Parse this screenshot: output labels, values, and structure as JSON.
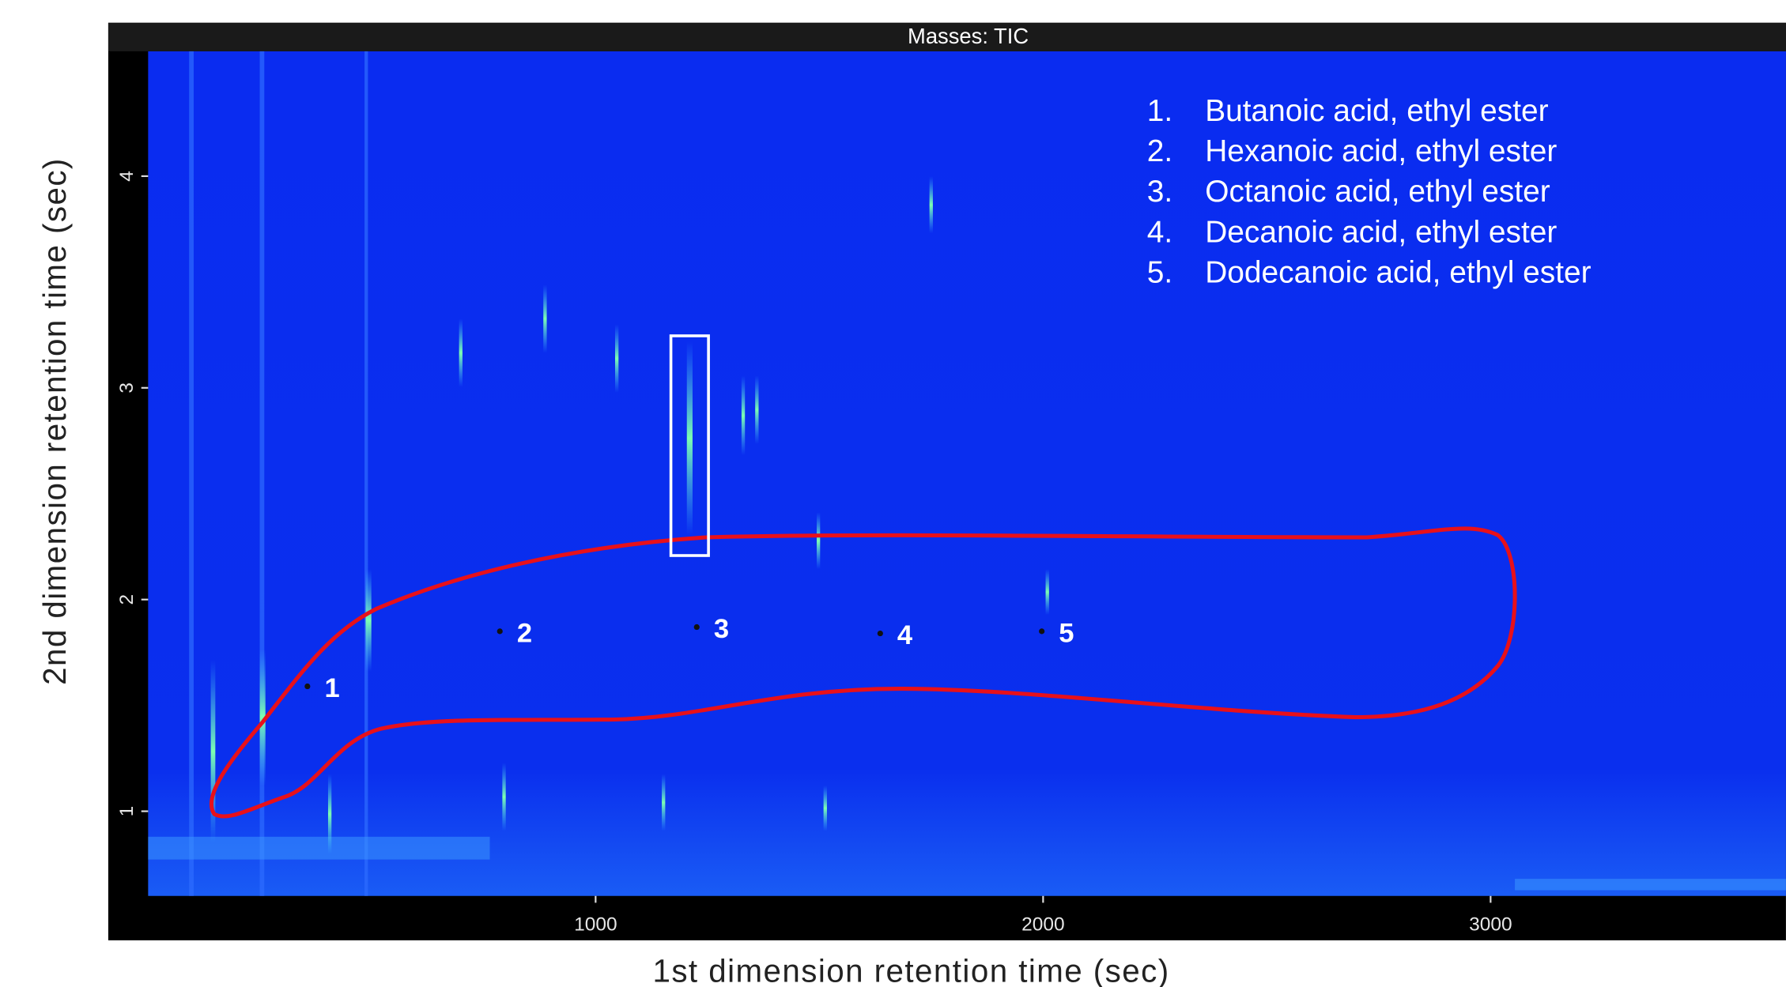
{
  "chart_data": {
    "type": "chromatogram",
    "title": "Masses: TIC",
    "x_label": "1st dimension retention time (sec)",
    "y_label": "2nd dimension retention time (sec)",
    "xlim": [
      0,
      3660
    ],
    "ylim": [
      0.6,
      4.59
    ],
    "xticks": [
      1000,
      2000,
      3000
    ],
    "yticks": [
      1,
      2,
      3,
      4
    ],
    "peaks": [
      {
        "label": "1",
        "x": 356,
        "y": 1.59
      },
      {
        "label": "2",
        "x": 786,
        "y": 1.85
      },
      {
        "label": "3",
        "x": 1226,
        "y": 1.87
      },
      {
        "label": "4",
        "x": 1636,
        "y": 1.84
      },
      {
        "label": "5",
        "x": 1997,
        "y": 1.85
      }
    ],
    "legend": [
      {
        "number": "1.",
        "name": "Butanoic acid, ethyl ester"
      },
      {
        "number": "2.",
        "name": "Hexanoic acid, ethyl ester"
      },
      {
        "number": "3.",
        "name": "Octanoic acid, ethyl ester"
      },
      {
        "number": "4.",
        "name": "Decanoic acid, ethyl ester"
      },
      {
        "number": "5.",
        "name": "Dodecanoic acid, ethyl ester"
      }
    ]
  }
}
